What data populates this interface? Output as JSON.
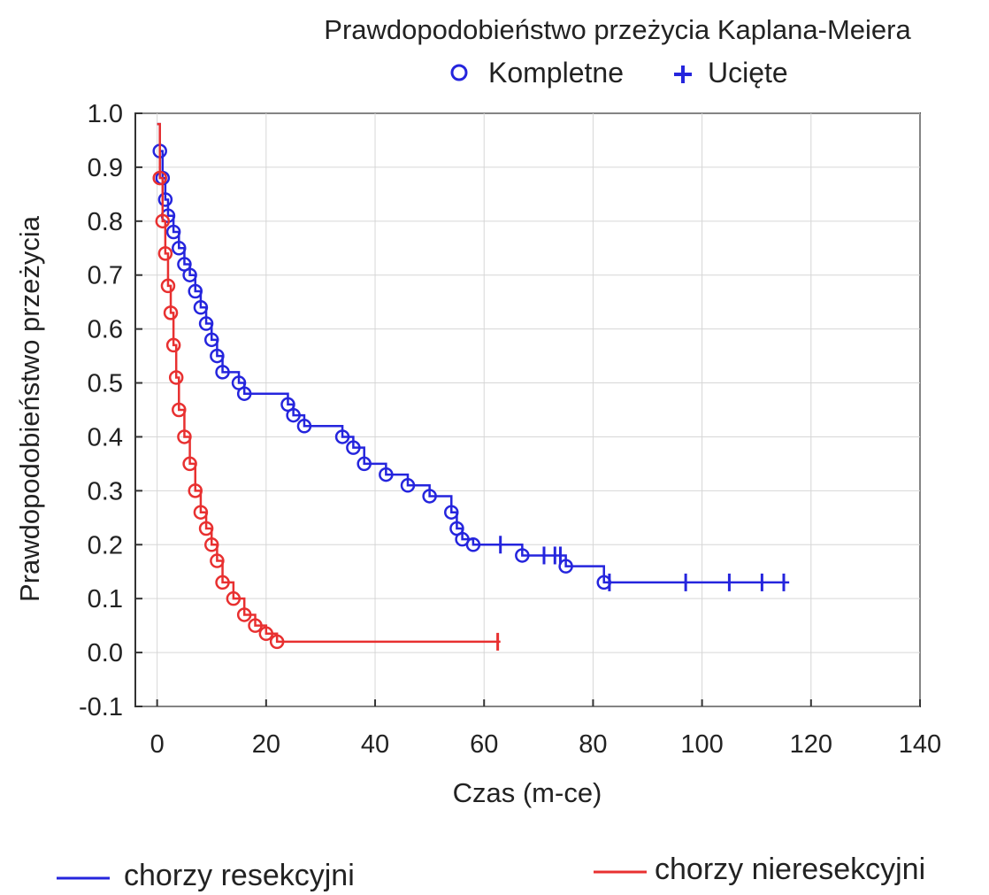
{
  "chart_data": {
    "type": "line",
    "title": "Prawdopodobieństwo przeżycia Kaplana-Meiera",
    "marker_legend": [
      {
        "label": "Kompletne",
        "marker": "circle-icon"
      },
      {
        "label": "Ucięte",
        "marker": "plus-icon"
      }
    ],
    "xlabel": "Czas (m-ce)",
    "ylabel": "Prawdopodobieństwo przeżycia",
    "xlim": [
      -4,
      140
    ],
    "ylim": [
      -0.1,
      1.0
    ],
    "x_ticks": [
      "0",
      "20",
      "40",
      "60",
      "80",
      "100",
      "120",
      "140"
    ],
    "y_ticks": [
      "1.0",
      "0.9",
      "0.8",
      "0.7",
      "0.6",
      "0.5",
      "0.4",
      "0.3",
      "0.2",
      "0.1",
      "0.0",
      "-0.1"
    ],
    "grid": true,
    "colors": {
      "resected": "#2525dd",
      "nonresected": "#e83030"
    },
    "series": [
      {
        "name": "chorzy resekcyjni",
        "color": "#2525dd",
        "steps": [
          [
            0,
            0.98
          ],
          [
            0.5,
            0.93
          ],
          [
            1,
            0.88
          ],
          [
            1.5,
            0.84
          ],
          [
            2,
            0.81
          ],
          [
            3,
            0.78
          ],
          [
            4,
            0.75
          ],
          [
            5,
            0.72
          ],
          [
            6,
            0.7
          ],
          [
            7,
            0.67
          ],
          [
            8,
            0.64
          ],
          [
            9,
            0.61
          ],
          [
            10,
            0.58
          ],
          [
            11,
            0.55
          ],
          [
            12,
            0.52
          ],
          [
            15,
            0.5
          ],
          [
            16,
            0.48
          ],
          [
            24,
            0.46
          ],
          [
            25,
            0.44
          ],
          [
            27,
            0.42
          ],
          [
            34,
            0.4
          ],
          [
            36,
            0.38
          ],
          [
            38,
            0.35
          ],
          [
            42,
            0.33
          ],
          [
            46,
            0.31
          ],
          [
            50,
            0.29
          ],
          [
            54,
            0.26
          ],
          [
            55,
            0.23
          ],
          [
            56,
            0.21
          ],
          [
            58,
            0.2
          ],
          [
            62,
            0.2
          ],
          [
            67,
            0.18
          ],
          [
            75,
            0.16
          ],
          [
            82,
            0.13
          ],
          [
            116,
            0.13
          ]
        ],
        "events": [
          [
            0.5,
            0.93
          ],
          [
            1,
            0.88
          ],
          [
            1.5,
            0.84
          ],
          [
            2,
            0.81
          ],
          [
            3,
            0.78
          ],
          [
            4,
            0.75
          ],
          [
            5,
            0.72
          ],
          [
            6,
            0.7
          ],
          [
            7,
            0.67
          ],
          [
            8,
            0.64
          ],
          [
            9,
            0.61
          ],
          [
            10,
            0.58
          ],
          [
            11,
            0.55
          ],
          [
            12,
            0.52
          ],
          [
            15,
            0.5
          ],
          [
            16,
            0.48
          ],
          [
            24,
            0.46
          ],
          [
            25,
            0.44
          ],
          [
            27,
            0.42
          ],
          [
            34,
            0.4
          ],
          [
            36,
            0.38
          ],
          [
            38,
            0.35
          ],
          [
            42,
            0.33
          ],
          [
            46,
            0.31
          ],
          [
            50,
            0.29
          ],
          [
            54,
            0.26
          ],
          [
            55,
            0.23
          ],
          [
            56,
            0.21
          ],
          [
            58,
            0.2
          ],
          [
            67,
            0.18
          ],
          [
            75,
            0.16
          ],
          [
            82,
            0.13
          ]
        ],
        "censored": [
          [
            63,
            0.2
          ],
          [
            71,
            0.18
          ],
          [
            73,
            0.18
          ],
          [
            74,
            0.18
          ],
          [
            83,
            0.13
          ],
          [
            97,
            0.13
          ],
          [
            105,
            0.13
          ],
          [
            111,
            0.13
          ],
          [
            115,
            0.13
          ]
        ]
      },
      {
        "name": "chorzy nieresekcyjni",
        "color": "#e83030",
        "steps": [
          [
            0,
            0.98
          ],
          [
            0.5,
            0.88
          ],
          [
            1,
            0.8
          ],
          [
            1.5,
            0.74
          ],
          [
            2,
            0.68
          ],
          [
            2.5,
            0.63
          ],
          [
            3,
            0.57
          ],
          [
            3.5,
            0.51
          ],
          [
            4,
            0.45
          ],
          [
            5,
            0.4
          ],
          [
            6,
            0.35
          ],
          [
            7,
            0.3
          ],
          [
            8,
            0.26
          ],
          [
            9,
            0.23
          ],
          [
            10,
            0.2
          ],
          [
            11,
            0.17
          ],
          [
            12,
            0.13
          ],
          [
            14,
            0.1
          ],
          [
            16,
            0.07
          ],
          [
            18,
            0.05
          ],
          [
            20,
            0.035
          ],
          [
            22,
            0.02
          ],
          [
            63,
            0.02
          ]
        ],
        "events": [
          [
            0.5,
            0.88
          ],
          [
            1,
            0.8
          ],
          [
            1.5,
            0.74
          ],
          [
            2,
            0.68
          ],
          [
            2.5,
            0.63
          ],
          [
            3,
            0.57
          ],
          [
            3.5,
            0.51
          ],
          [
            4,
            0.45
          ],
          [
            5,
            0.4
          ],
          [
            6,
            0.35
          ],
          [
            7,
            0.3
          ],
          [
            8,
            0.26
          ],
          [
            9,
            0.23
          ],
          [
            10,
            0.2
          ],
          [
            11,
            0.17
          ],
          [
            12,
            0.13
          ],
          [
            14,
            0.1
          ],
          [
            16,
            0.07
          ],
          [
            18,
            0.05
          ],
          [
            20,
            0.035
          ],
          [
            22,
            0.02
          ]
        ],
        "censored": [
          [
            62.5,
            0.02
          ]
        ]
      }
    ]
  }
}
